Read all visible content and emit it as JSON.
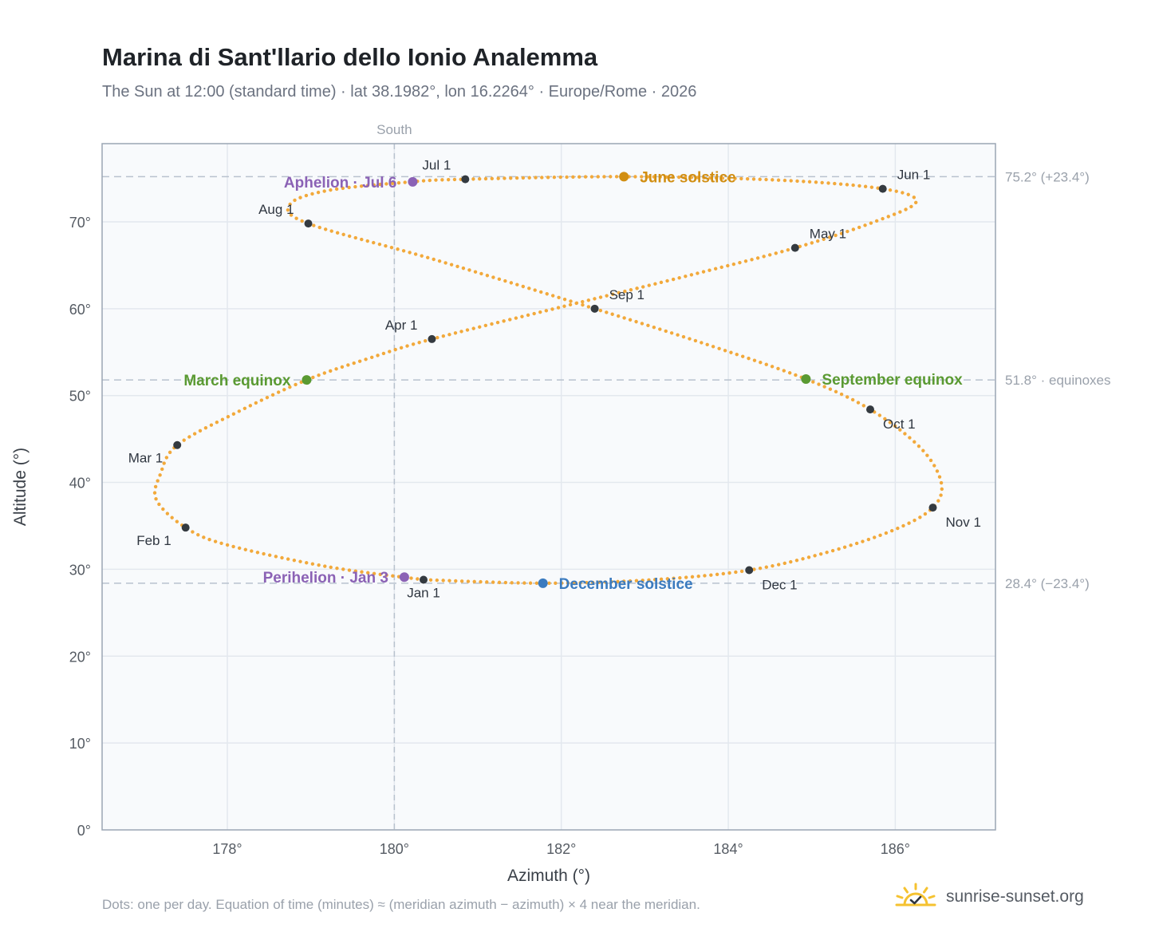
{
  "header": {
    "title": "Marina di Sant'llario dello Ionio Analemma",
    "subtitle": "The Sun at 12:00 (standard time) · lat 38.1982°, lon 16.2264° · Europe/Rome · 2026"
  },
  "footnote": "Dots: one per day. Equation of time (minutes) ≈ (meridian azimuth − azimuth) × 4 near the meridian.",
  "brand": {
    "name": "sunrise-sunset.org",
    "logo_icon": "sun-check-icon",
    "color": "#f5c230"
  },
  "colors": {
    "path": "#f2a93b",
    "month_marker": "#343a40",
    "june_solstice": "#d18e12",
    "december_solstice": "#3b7bbf",
    "equinox": "#5a9a32",
    "apsis": "#8b62b5",
    "plot_background": "#f8fafc",
    "grid": "#e3e8ee",
    "reference_line": "#b8c2ce"
  },
  "chart_data": {
    "type": "scatter",
    "xlabel": "Azimuth (°)",
    "ylabel": "Altitude (°)",
    "xlim": [
      176.5,
      187.2
    ],
    "ylim": [
      0,
      79
    ],
    "x_ticks": [
      178,
      180,
      182,
      184,
      186
    ],
    "x_tick_labels": [
      "178°",
      "180°",
      "182°",
      "184°",
      "186°"
    ],
    "y_ticks": [
      0,
      10,
      20,
      30,
      40,
      50,
      60,
      70
    ],
    "y_tick_labels": [
      "0°",
      "10°",
      "20°",
      "30°",
      "40°",
      "50°",
      "60°",
      "70°"
    ],
    "grid": true,
    "meridian": {
      "azimuth": 180,
      "label": "South"
    },
    "reference_lines": [
      {
        "altitude": 75.2,
        "label": "75.2° (+23.4°)"
      },
      {
        "altitude": 51.8,
        "label": "51.8° · equinoxes"
      },
      {
        "altitude": 28.4,
        "label": "28.4° (−23.4°)"
      }
    ],
    "path_anchors": [
      {
        "az": 180.35,
        "alt": 28.8
      },
      {
        "az": 179.2,
        "alt": 30.3
      },
      {
        "az": 178.0,
        "alt": 32.8
      },
      {
        "az": 177.5,
        "alt": 34.8
      },
      {
        "az": 177.15,
        "alt": 38.0
      },
      {
        "az": 177.2,
        "alt": 41.0
      },
      {
        "az": 177.4,
        "alt": 44.3
      },
      {
        "az": 178.1,
        "alt": 48.0
      },
      {
        "az": 178.95,
        "alt": 51.8
      },
      {
        "az": 179.7,
        "alt": 54.3
      },
      {
        "az": 180.45,
        "alt": 56.5
      },
      {
        "az": 182.0,
        "alt": 60.2
      },
      {
        "az": 183.6,
        "alt": 64.0
      },
      {
        "az": 184.8,
        "alt": 67.0
      },
      {
        "az": 185.75,
        "alt": 70.0
      },
      {
        "az": 186.25,
        "alt": 72.3
      },
      {
        "az": 185.85,
        "alt": 73.8
      },
      {
        "az": 184.6,
        "alt": 74.8
      },
      {
        "az": 182.75,
        "alt": 75.2
      },
      {
        "az": 180.85,
        "alt": 74.9
      },
      {
        "az": 180.2,
        "alt": 74.6
      },
      {
        "az": 179.2,
        "alt": 73.6
      },
      {
        "az": 178.75,
        "alt": 72.0
      },
      {
        "az": 178.97,
        "alt": 69.8
      },
      {
        "az": 180.5,
        "alt": 65.6
      },
      {
        "az": 182.4,
        "alt": 60.0
      },
      {
        "az": 183.8,
        "alt": 55.7
      },
      {
        "az": 184.93,
        "alt": 51.9
      },
      {
        "az": 185.7,
        "alt": 48.4
      },
      {
        "az": 186.3,
        "alt": 44.0
      },
      {
        "az": 186.55,
        "alt": 40.0
      },
      {
        "az": 186.45,
        "alt": 37.1
      },
      {
        "az": 186.0,
        "alt": 34.6
      },
      {
        "az": 185.2,
        "alt": 32.0
      },
      {
        "az": 184.25,
        "alt": 29.9
      },
      {
        "az": 183.1,
        "alt": 28.8
      },
      {
        "az": 181.78,
        "alt": 28.4
      },
      {
        "az": 180.35,
        "alt": 28.8
      }
    ],
    "month_markers": [
      {
        "label": "Jan 1",
        "az": 180.35,
        "alt": 28.8,
        "anchor": "below"
      },
      {
        "label": "Feb 1",
        "az": 177.5,
        "alt": 34.8,
        "anchor": "below-left"
      },
      {
        "label": "Mar 1",
        "az": 177.4,
        "alt": 44.3,
        "anchor": "below-left"
      },
      {
        "label": "Apr 1",
        "az": 180.45,
        "alt": 56.5,
        "anchor": "above-left"
      },
      {
        "label": "May 1",
        "az": 184.8,
        "alt": 67.0,
        "anchor": "above-right"
      },
      {
        "label": "Jun 1",
        "az": 185.85,
        "alt": 73.8,
        "anchor": "above-right"
      },
      {
        "label": "Jul 1",
        "az": 180.85,
        "alt": 74.9,
        "anchor": "above-left"
      },
      {
        "label": "Aug 1",
        "az": 178.97,
        "alt": 69.8,
        "anchor": "above-left"
      },
      {
        "label": "Sep 1",
        "az": 182.4,
        "alt": 60.0,
        "anchor": "above-right"
      },
      {
        "label": "Oct 1",
        "az": 185.7,
        "alt": 48.4,
        "anchor": "below-right"
      },
      {
        "label": "Nov 1",
        "az": 186.45,
        "alt": 37.1,
        "anchor": "below-right"
      },
      {
        "label": "Dec 1",
        "az": 184.25,
        "alt": 29.9,
        "anchor": "below-right"
      }
    ],
    "events": [
      {
        "label": "June solstice",
        "az": 182.75,
        "alt": 75.2,
        "kind": "june_solstice",
        "anchor": "right"
      },
      {
        "label": "December solstice",
        "az": 181.78,
        "alt": 28.4,
        "kind": "december_solstice",
        "anchor": "right"
      },
      {
        "label": "March equinox",
        "az": 178.95,
        "alt": 51.8,
        "kind": "equinox",
        "anchor": "left"
      },
      {
        "label": "September equinox",
        "az": 184.93,
        "alt": 51.9,
        "kind": "equinox",
        "anchor": "right"
      },
      {
        "label": "Aphelion · Jul 6",
        "az": 180.22,
        "alt": 74.6,
        "kind": "apsis",
        "anchor": "left"
      },
      {
        "label": "Perihelion · Jan 3",
        "az": 180.12,
        "alt": 29.1,
        "kind": "apsis",
        "anchor": "left"
      }
    ]
  }
}
